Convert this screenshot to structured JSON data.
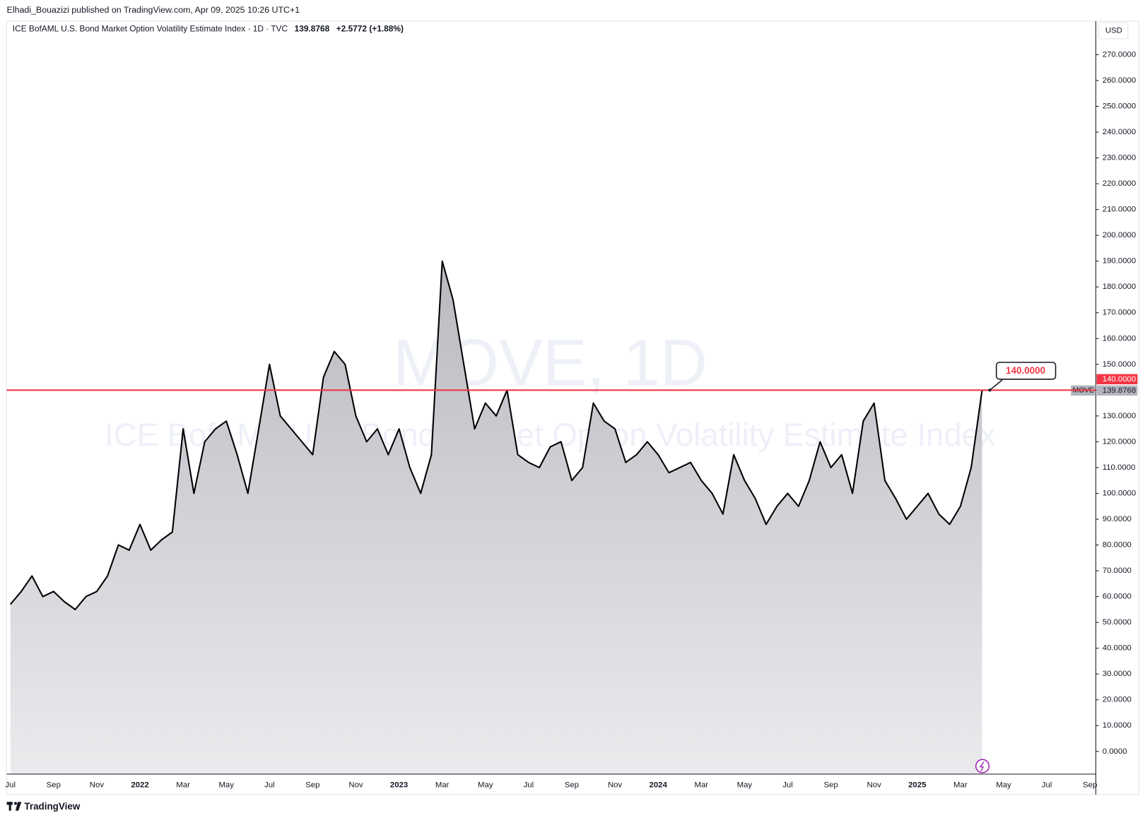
{
  "chart_data": {
    "type": "area",
    "publisher": "Elhadi_Bouazizi published on TradingView.com, Apr 09, 2025 10:26 UTC+1",
    "title": "ICE BofAML U.S. Bond Market Option Volatility Estimate Index · 1D · TVC",
    "change": "+2.5772 (+1.88%)",
    "watermark": "MOVE, 1D",
    "watermark_subtitle": "ICE BofAML U.S. Bond Market Option Volatility Estimate Index",
    "currency": "USD",
    "brand": "TradingView",
    "categories": [
      "Jul",
      null,
      null,
      null,
      "Sep",
      null,
      null,
      null,
      "Nov",
      null,
      null,
      null,
      "2022",
      null,
      null,
      null,
      "Mar",
      null,
      null,
      null,
      "May",
      null,
      null,
      null,
      "Jul",
      null,
      null,
      null,
      "Sep",
      null,
      null,
      null,
      "Nov",
      null,
      null,
      null,
      "2023",
      null,
      null,
      null,
      "Mar",
      null,
      null,
      null,
      "May",
      null,
      null,
      null,
      "Jul",
      null,
      null,
      null,
      "Sep",
      null,
      null,
      null,
      "Nov",
      null,
      null,
      null,
      "2024",
      null,
      null,
      null,
      "Mar",
      null,
      null,
      null,
      "May",
      null,
      null,
      null,
      "Jul",
      null,
      null,
      null,
      "Sep",
      null,
      null,
      null,
      "Nov",
      null,
      null,
      null,
      "2025",
      null,
      null,
      null,
      "Mar",
      null,
      null,
      null,
      "May",
      null,
      null,
      null,
      "Jul",
      null,
      null,
      null,
      "Sep"
    ],
    "series": [
      {
        "name": "MOVE",
        "color": "#000000",
        "values": [
          57,
          62,
          68,
          60,
          62,
          58,
          55,
          60,
          62,
          68,
          80,
          78,
          88,
          78,
          82,
          85,
          125,
          100,
          120,
          125,
          128,
          115,
          100,
          125,
          150,
          130,
          125,
          120,
          115,
          145,
          155,
          150,
          130,
          120,
          125,
          115,
          125,
          110,
          100,
          115,
          190,
          175,
          150,
          125,
          135,
          130,
          140,
          115,
          112,
          110,
          118,
          120,
          105,
          110,
          135,
          128,
          125,
          112,
          115,
          120,
          115,
          108,
          110,
          112,
          105,
          100,
          92,
          115,
          105,
          98,
          88,
          95,
          100,
          95,
          105,
          120,
          110,
          115,
          100,
          128,
          135,
          105,
          98,
          90,
          95,
          100,
          92,
          88,
          95,
          110,
          139.8768,
          null,
          null,
          null,
          null,
          null,
          null,
          null,
          null,
          null,
          null
        ]
      }
    ],
    "hline": {
      "value": 140,
      "label": "140.0000",
      "color": "#f23645"
    },
    "ylim": [
      -8.8,
      282.7
    ],
    "yticks": [
      {
        "value": 0,
        "label": "0.0000"
      },
      {
        "value": 10,
        "label": "10.0000"
      },
      {
        "value": 20,
        "label": "20.0000"
      },
      {
        "value": 30,
        "label": "30.0000"
      },
      {
        "value": 40,
        "label": "40.0000"
      },
      {
        "value": 50,
        "label": "50.0000"
      },
      {
        "value": 60,
        "label": "60.0000"
      },
      {
        "value": 70,
        "label": "70.0000"
      },
      {
        "value": 80,
        "label": "80.0000"
      },
      {
        "value": 90,
        "label": "90.0000"
      },
      {
        "value": 100,
        "label": "100.0000"
      },
      {
        "value": 110,
        "label": "110.0000"
      },
      {
        "value": 120,
        "label": "120.0000"
      },
      {
        "value": 130,
        "label": "130.0000"
      },
      {
        "value": 140,
        "label": "140.0000"
      },
      {
        "value": 150,
        "label": "150.0000"
      },
      {
        "value": 160,
        "label": "160.0000"
      },
      {
        "value": 170,
        "label": "170.0000"
      },
      {
        "value": 180,
        "label": "180.0000"
      },
      {
        "value": 190,
        "label": "190.0000"
      },
      {
        "value": 200,
        "label": "200.0000"
      },
      {
        "value": 210,
        "label": "210.0000"
      },
      {
        "value": 220,
        "label": "220.0000"
      },
      {
        "value": 230,
        "label": "230.0000"
      },
      {
        "value": 240,
        "label": "240.0000"
      },
      {
        "value": 250,
        "label": "250.0000"
      },
      {
        "value": 260,
        "label": "260.0000"
      },
      {
        "value": 270,
        "label": "270.0000"
      }
    ],
    "grid": false
  }
}
